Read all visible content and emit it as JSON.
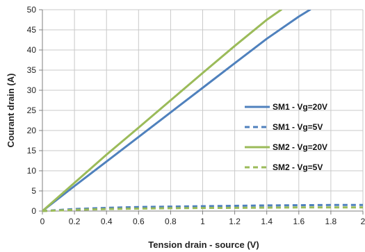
{
  "chart_data": {
    "type": "line",
    "xlabel": "Tension drain - source (V)",
    "ylabel": "Courant drain (A)",
    "xlim": [
      0,
      2
    ],
    "ylim": [
      0,
      50
    ],
    "xticks": [
      0,
      0.2,
      0.4,
      0.6,
      0.8,
      1,
      1.2,
      1.4,
      1.6,
      1.8,
      2
    ],
    "xtick_labels": [
      "0",
      "0.2",
      "0.4",
      "0.6",
      "0.8",
      "1",
      "1.2",
      "1.4",
      "1.6",
      "1.8",
      "2"
    ],
    "yticks": [
      0,
      5,
      10,
      15,
      20,
      25,
      30,
      35,
      40,
      45,
      50
    ],
    "ytick_labels": [
      "0",
      "5",
      "10",
      "15",
      "20",
      "25",
      "30",
      "35",
      "40",
      "45",
      "50"
    ],
    "grid": true,
    "legend_position": "middle-right",
    "series": [
      {
        "name": "SM1 - Vg=20V",
        "color": "#4f81bd",
        "dash": "solid",
        "points": [
          [
            0,
            0
          ],
          [
            0.2,
            6.2
          ],
          [
            0.4,
            12.3
          ],
          [
            0.6,
            18.4
          ],
          [
            0.8,
            24.5
          ],
          [
            1.0,
            30.6
          ],
          [
            1.2,
            36.7
          ],
          [
            1.4,
            42.8
          ],
          [
            1.6,
            48.3
          ],
          [
            1.67,
            50
          ]
        ]
      },
      {
        "name": "SM1 - Vg=5V",
        "color": "#4f81bd",
        "dash": "dashed",
        "points": [
          [
            0,
            0
          ],
          [
            0.2,
            0.5
          ],
          [
            0.4,
            0.8
          ],
          [
            0.6,
            1.0
          ],
          [
            0.8,
            1.1
          ],
          [
            1.0,
            1.2
          ],
          [
            1.2,
            1.3
          ],
          [
            1.4,
            1.4
          ],
          [
            1.6,
            1.45
          ],
          [
            1.8,
            1.5
          ],
          [
            2.0,
            1.5
          ]
        ]
      },
      {
        "name": "SM2 - Vg=20V",
        "color": "#9bbb59",
        "dash": "solid",
        "points": [
          [
            0,
            0
          ],
          [
            0.2,
            7.0
          ],
          [
            0.4,
            14.0
          ],
          [
            0.6,
            20.7
          ],
          [
            0.8,
            27.5
          ],
          [
            1.0,
            34.3
          ],
          [
            1.2,
            41.0
          ],
          [
            1.4,
            47.5
          ],
          [
            1.49,
            50
          ]
        ]
      },
      {
        "name": "SM2 - Vg=5V",
        "color": "#9bbb59",
        "dash": "dashed",
        "points": [
          [
            0,
            0
          ],
          [
            0.2,
            0.3
          ],
          [
            0.4,
            0.5
          ],
          [
            0.6,
            0.6
          ],
          [
            0.8,
            0.7
          ],
          [
            1.0,
            0.75
          ],
          [
            1.2,
            0.8
          ],
          [
            1.4,
            0.85
          ],
          [
            1.6,
            0.9
          ],
          [
            1.8,
            0.9
          ],
          [
            2.0,
            0.9
          ]
        ]
      }
    ]
  }
}
